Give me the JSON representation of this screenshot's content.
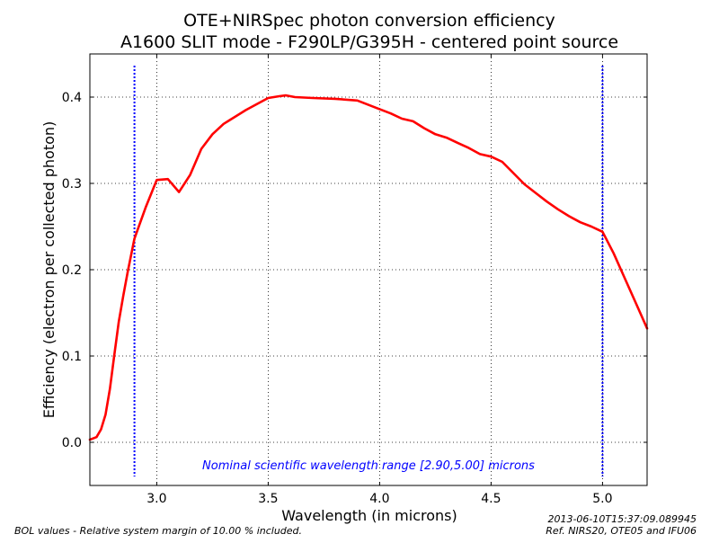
{
  "chart_data": {
    "type": "line",
    "title_lines": [
      "OTE+NIRSpec photon conversion efficiency",
      "A1600 SLIT mode - F290LP/G395H - centered point source"
    ],
    "xlabel": "Wavelength (in microns)",
    "ylabel": "Efficiency (electron per collected photon)",
    "xlim": [
      2.7,
      5.2
    ],
    "ylim": [
      -0.05,
      0.45
    ],
    "x_ticks": [
      3.0,
      3.5,
      4.0,
      4.5,
      5.0
    ],
    "x_tick_labels": [
      "3.0",
      "3.5",
      "4.0",
      "4.5",
      "5.0"
    ],
    "y_ticks": [
      0.0,
      0.1,
      0.2,
      0.3,
      0.4
    ],
    "y_tick_labels": [
      "0.0",
      "0.1",
      "0.2",
      "0.3",
      "0.4"
    ],
    "grid": true,
    "series": [
      {
        "color": "#ff0000",
        "x": [
          2.7,
          2.73,
          2.75,
          2.77,
          2.79,
          2.81,
          2.83,
          2.85,
          2.87,
          2.9,
          2.95,
          3.0,
          3.05,
          3.1,
          3.15,
          3.2,
          3.25,
          3.3,
          3.4,
          3.5,
          3.55,
          3.58,
          3.62,
          3.7,
          3.8,
          3.9,
          4.0,
          4.05,
          4.1,
          4.15,
          4.2,
          4.25,
          4.3,
          4.35,
          4.4,
          4.45,
          4.5,
          4.55,
          4.6,
          4.65,
          4.7,
          4.75,
          4.8,
          4.85,
          4.9,
          4.95,
          5.0,
          5.05,
          5.1,
          5.15,
          5.2
        ],
        "values": [
          0.003,
          0.006,
          0.015,
          0.032,
          0.062,
          0.102,
          0.14,
          0.17,
          0.198,
          0.236,
          0.272,
          0.304,
          0.305,
          0.29,
          0.31,
          0.34,
          0.357,
          0.369,
          0.385,
          0.399,
          0.401,
          0.402,
          0.4,
          0.399,
          0.398,
          0.396,
          0.386,
          0.381,
          0.375,
          0.372,
          0.364,
          0.357,
          0.353,
          0.347,
          0.341,
          0.334,
          0.331,
          0.325,
          0.312,
          0.299,
          0.289,
          0.279,
          0.27,
          0.262,
          0.255,
          0.25,
          0.244,
          0.219,
          0.19,
          0.161,
          0.132
        ]
      }
    ],
    "vertical_lines": [
      {
        "x": 2.9,
        "color": "#0000ff",
        "style": "dotted"
      },
      {
        "x": 5.0,
        "color": "#0000ff",
        "style": "dotted"
      }
    ],
    "annotation": {
      "text": "Nominal scientific wavelength range [2.90,5.00] microns",
      "color": "#0000ff",
      "x": 3.95,
      "y": -0.027
    }
  },
  "footer": {
    "left_note": "BOL values - Relative system margin of 10.00 % included.",
    "timestamp": "2013-06-10T15:37:09.089945",
    "reference": "Ref. NIRS20, OTE05 and IFU06"
  }
}
